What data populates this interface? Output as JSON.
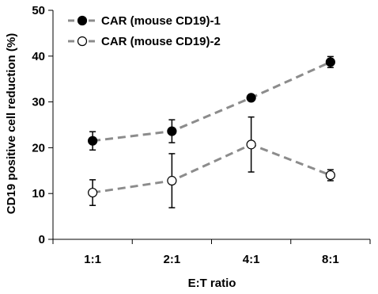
{
  "chart_data": {
    "type": "line",
    "title": "",
    "xlabel": "E:T ratio",
    "ylabel": "CD19 positive cell reduction (%)",
    "categories": [
      "1:1",
      "2:1",
      "4:1",
      "8:1"
    ],
    "ylim": [
      0,
      50
    ],
    "yticks": [
      0,
      10,
      20,
      30,
      40,
      50
    ],
    "grid": false,
    "legend_position": "top-left",
    "series": [
      {
        "name": "CAR (mouse CD19)-1",
        "marker": "filled-circle",
        "line_color": "#8c8c8c",
        "marker_color": "#000000",
        "values": [
          21.5,
          23.6,
          30.9,
          38.7
        ],
        "error": [
          2.0,
          2.5,
          0.4,
          1.2
        ]
      },
      {
        "name": "CAR (mouse CD19)-2",
        "marker": "open-circle",
        "line_color": "#8c8c8c",
        "marker_color": "#ffffff",
        "values": [
          10.2,
          12.8,
          20.7,
          14.0
        ],
        "error": [
          2.8,
          5.9,
          6.0,
          1.2
        ]
      }
    ]
  }
}
